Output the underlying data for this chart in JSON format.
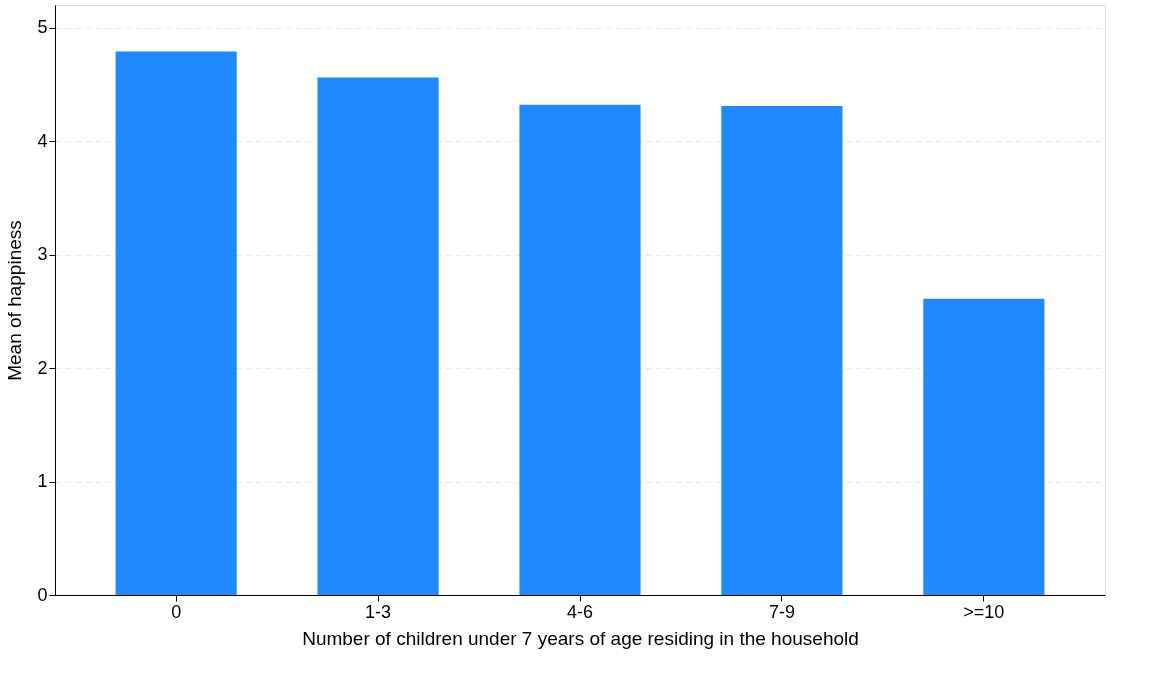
{
  "chart_data": {
    "type": "bar",
    "xlabel": "Number of children under 7 years of age residing in the household",
    "ylabel": "Mean of happiness",
    "categories": [
      "0",
      "1-3",
      "4-6",
      "7-9",
      ">=10"
    ],
    "values": [
      4.79,
      4.56,
      4.32,
      4.31,
      2.61
    ],
    "color": "#1e88ff",
    "ylim": [
      0,
      5.2
    ],
    "yticks": [
      0,
      1,
      2,
      3,
      4,
      5
    ],
    "grid": "y"
  }
}
